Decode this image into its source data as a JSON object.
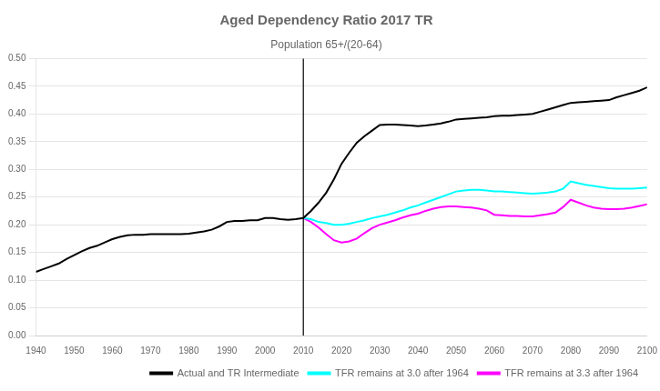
{
  "chart_data": {
    "type": "line",
    "title": "Aged Dependency Ratio 2017 TR",
    "subtitle": "Population 65+/(20-64)",
    "xlim": [
      1940,
      2100
    ],
    "xticks": [
      1940,
      1950,
      1960,
      1970,
      1980,
      1990,
      2000,
      2010,
      2020,
      2030,
      2040,
      2050,
      2060,
      2070,
      2080,
      2090,
      2100
    ],
    "ylim": [
      0.0,
      0.5
    ],
    "yticks": [
      {
        "value": 0.0,
        "label": "0.00"
      },
      0.05,
      {
        "value": 0.1,
        "label": "0.10"
      },
      0.15,
      {
        "value": 0.2,
        "label": "0.20"
      },
      0.25,
      {
        "value": 0.3,
        "label": "0.30"
      },
      0.35,
      {
        "value": 0.4,
        "label": "0.40"
      },
      0.45,
      {
        "value": 0.5,
        "label": "0.50"
      }
    ],
    "grid": "y",
    "legend": "lower right",
    "vline": {
      "x": 2010,
      "color": "#000000"
    },
    "series": [
      {
        "name": "Actual and TR Intermediate",
        "color": "#000000",
        "x": [
          1940,
          1942,
          1944,
          1946,
          1948,
          1950,
          1952,
          1954,
          1956,
          1958,
          1960,
          1962,
          1964,
          1966,
          1968,
          1970,
          1972,
          1974,
          1976,
          1978,
          1980,
          1982,
          1984,
          1986,
          1988,
          1990,
          1992,
          1994,
          1996,
          1998,
          2000,
          2002,
          2004,
          2006,
          2008,
          2010,
          2012,
          2014,
          2016,
          2018,
          2020,
          2022,
          2024,
          2026,
          2028,
          2030,
          2032,
          2034,
          2036,
          2038,
          2040,
          2042,
          2044,
          2046,
          2048,
          2050,
          2052,
          2054,
          2056,
          2058,
          2060,
          2062,
          2064,
          2066,
          2068,
          2070,
          2072,
          2074,
          2076,
          2078,
          2080,
          2082,
          2084,
          2086,
          2088,
          2090,
          2092,
          2094,
          2096,
          2098,
          2100
        ],
        "values": [
          0.115,
          0.12,
          0.125,
          0.13,
          0.138,
          0.145,
          0.152,
          0.158,
          0.162,
          0.168,
          0.174,
          0.178,
          0.181,
          0.182,
          0.182,
          0.183,
          0.183,
          0.183,
          0.183,
          0.183,
          0.184,
          0.186,
          0.188,
          0.191,
          0.197,
          0.205,
          0.207,
          0.207,
          0.208,
          0.208,
          0.212,
          0.212,
          0.21,
          0.209,
          0.21,
          0.212,
          0.225,
          0.24,
          0.258,
          0.282,
          0.31,
          0.33,
          0.348,
          0.36,
          0.37,
          0.38,
          0.381,
          0.381,
          0.38,
          0.379,
          0.378,
          0.379,
          0.381,
          0.383,
          0.386,
          0.39,
          0.391,
          0.392,
          0.393,
          0.394,
          0.396,
          0.397,
          0.397,
          0.398,
          0.399,
          0.4,
          0.404,
          0.408,
          0.412,
          0.416,
          0.42,
          0.421,
          0.422,
          0.423,
          0.424,
          0.425,
          0.43,
          0.434,
          0.438,
          0.442,
          0.448
        ]
      },
      {
        "name": "TFR remains at 3.0 after 1964",
        "color": "#00FFFF",
        "x": [
          2010,
          2012,
          2014,
          2016,
          2018,
          2020,
          2022,
          2024,
          2026,
          2028,
          2030,
          2032,
          2034,
          2036,
          2038,
          2040,
          2042,
          2044,
          2046,
          2048,
          2050,
          2052,
          2054,
          2056,
          2058,
          2060,
          2062,
          2064,
          2066,
          2068,
          2070,
          2072,
          2074,
          2076,
          2078,
          2080,
          2082,
          2084,
          2086,
          2088,
          2090,
          2092,
          2094,
          2096,
          2098,
          2100
        ],
        "values": [
          0.212,
          0.21,
          0.205,
          0.203,
          0.2,
          0.2,
          0.202,
          0.205,
          0.208,
          0.212,
          0.215,
          0.218,
          0.222,
          0.226,
          0.231,
          0.235,
          0.24,
          0.245,
          0.25,
          0.255,
          0.26,
          0.262,
          0.263,
          0.263,
          0.262,
          0.26,
          0.26,
          0.259,
          0.258,
          0.257,
          0.256,
          0.257,
          0.258,
          0.26,
          0.265,
          0.278,
          0.275,
          0.272,
          0.27,
          0.268,
          0.266,
          0.265,
          0.265,
          0.265,
          0.266,
          0.267
        ]
      },
      {
        "name": "TFR remains at 3.3 after 1964",
        "color": "#FF00FF",
        "x": [
          2010,
          2012,
          2014,
          2016,
          2018,
          2020,
          2022,
          2024,
          2026,
          2028,
          2030,
          2032,
          2034,
          2036,
          2038,
          2040,
          2042,
          2044,
          2046,
          2048,
          2050,
          2052,
          2054,
          2056,
          2058,
          2060,
          2062,
          2064,
          2066,
          2068,
          2070,
          2072,
          2074,
          2076,
          2078,
          2080,
          2082,
          2084,
          2086,
          2088,
          2090,
          2092,
          2094,
          2096,
          2098,
          2100
        ],
        "values": [
          0.212,
          0.205,
          0.195,
          0.183,
          0.172,
          0.168,
          0.17,
          0.175,
          0.185,
          0.194,
          0.2,
          0.204,
          0.208,
          0.213,
          0.217,
          0.22,
          0.225,
          0.229,
          0.232,
          0.233,
          0.233,
          0.232,
          0.231,
          0.229,
          0.226,
          0.218,
          0.217,
          0.216,
          0.216,
          0.215,
          0.215,
          0.217,
          0.219,
          0.222,
          0.232,
          0.245,
          0.24,
          0.235,
          0.231,
          0.229,
          0.228,
          0.228,
          0.229,
          0.231,
          0.234,
          0.237
        ]
      }
    ]
  }
}
